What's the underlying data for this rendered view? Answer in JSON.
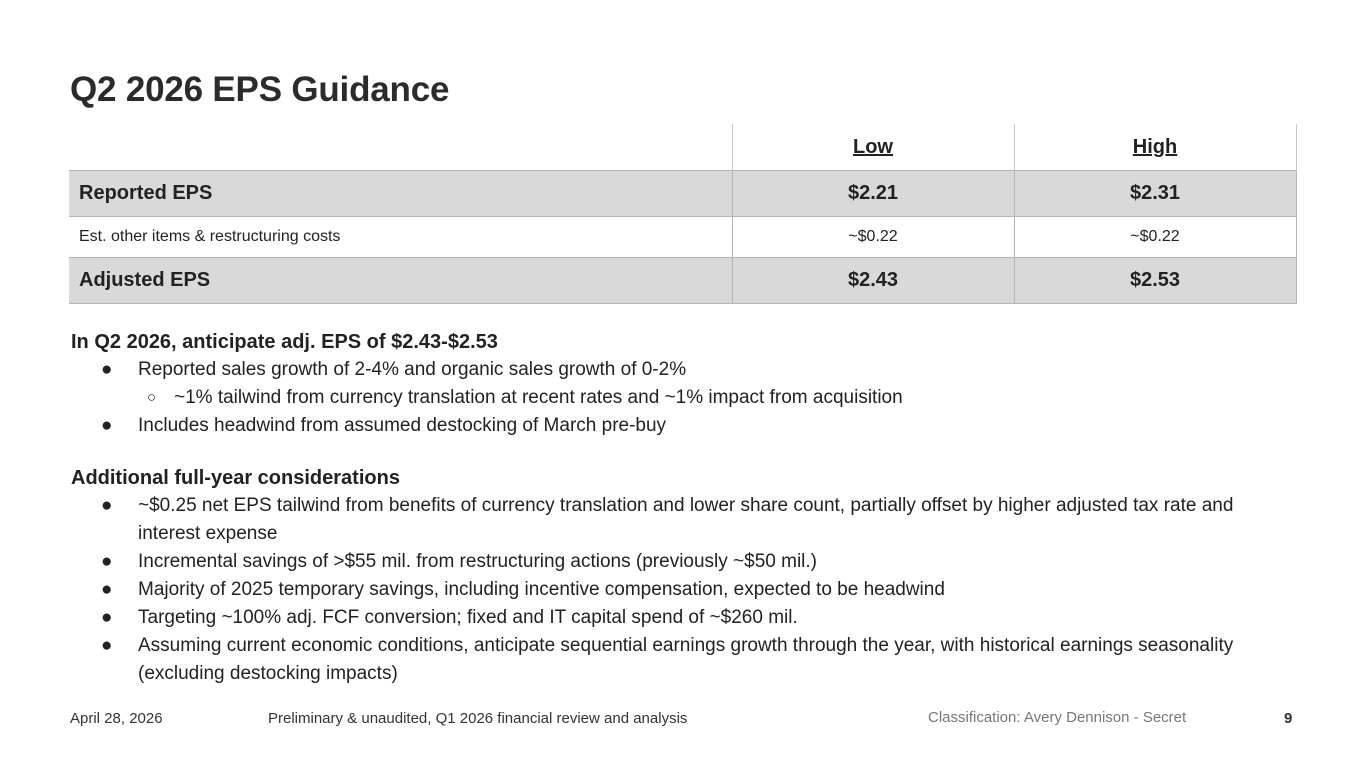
{
  "title": "Q2 2026 EPS Guidance",
  "table": {
    "headers": [
      "",
      "Low",
      "High"
    ],
    "rows": [
      {
        "label": "Reported EPS",
        "low": "$2.21",
        "high": "$2.31"
      },
      {
        "label": "Est. other items & restructuring costs",
        "low": "~$0.22",
        "high": "~$0.22"
      },
      {
        "label": "Adjusted EPS",
        "low": "$2.43",
        "high": "$2.53"
      }
    ]
  },
  "section1": {
    "heading": "In Q2 2026, anticipate adj. EPS of $2.43-$2.53",
    "bullet1": "Reported sales growth of 2-4% and organic sales growth of 0-2%",
    "sub1": "~1% tailwind from currency translation at recent rates and ~1% impact from acquisition",
    "bullet2": "Includes headwind from assumed destocking of March pre-buy"
  },
  "section2": {
    "heading": "Additional full-year considerations",
    "bullets": [
      "~$0.25 net EPS tailwind from benefits of currency translation and lower share count, partially offset by higher adjusted tax rate and interest expense",
      "Incremental savings of >$55 mil. from restructuring actions (previously ~$50 mil.)",
      "Majority of 2025 temporary savings, including incentive compensation, expected to be headwind",
      "Targeting ~100% adj. FCF conversion; fixed and IT capital spend of ~$260 mil.",
      "Assuming current economic conditions, anticipate sequential earnings growth through the year, with historical earnings seasonality (excluding destocking impacts)"
    ]
  },
  "bullet_glyph": "●",
  "sub_bullet_glyph": "○",
  "footer": {
    "date": "April 28, 2026",
    "description": "Preliminary & unaudited, Q1 2026 financial review and analysis",
    "classification": "Classification: Avery Dennison - Secret",
    "page": "9"
  }
}
